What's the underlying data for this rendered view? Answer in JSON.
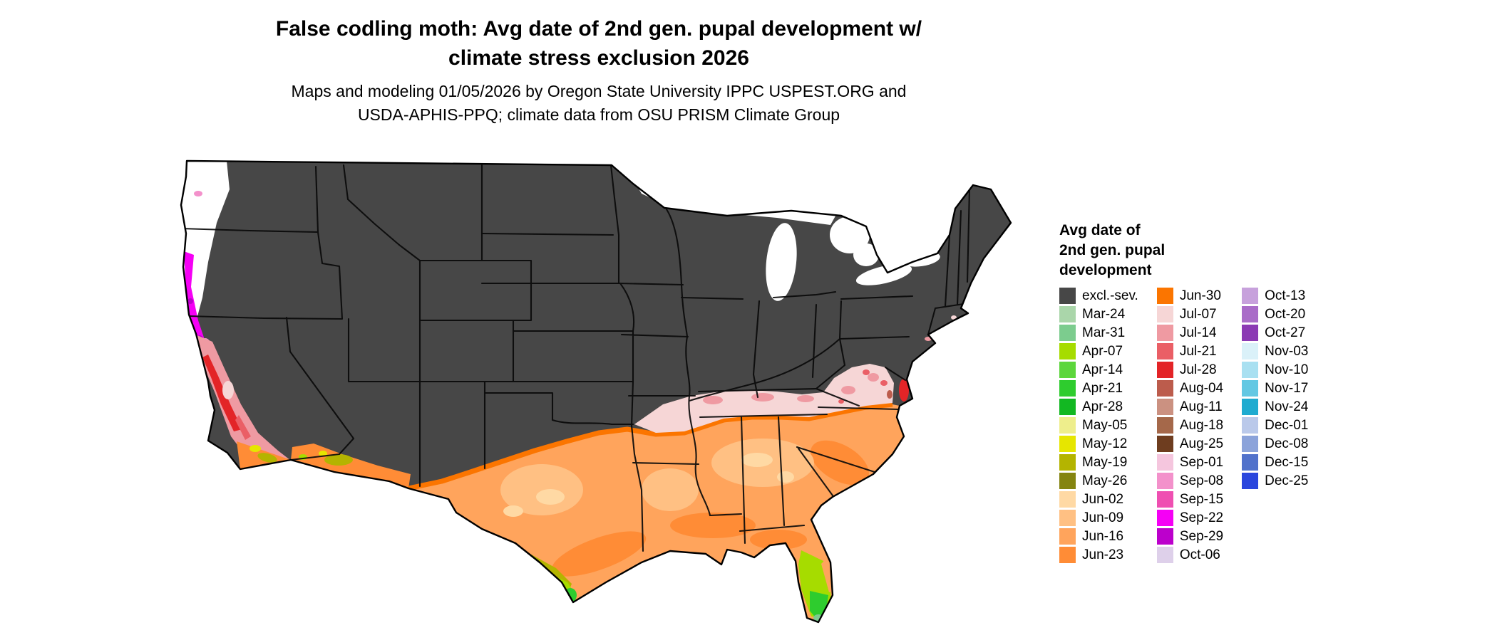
{
  "header": {
    "title_line1": "False codling moth: Avg date of 2nd gen. pupal development w/",
    "title_line2": "climate stress exclusion 2026",
    "subtitle_line1": "Maps and modeling 01/05/2026 by Oregon State University IPPC USPEST.ORG and",
    "subtitle_line2": "USDA-APHIS-PPQ; climate data from OSU PRISM Climate Group"
  },
  "legend": {
    "title_lines": [
      "Avg date of",
      "2nd gen. pupal",
      "development"
    ],
    "columns": [
      [
        "excl.-sev.",
        "Mar-24",
        "Mar-31",
        "Apr-07",
        "Apr-14",
        "Apr-21",
        "Apr-28",
        "May-05",
        "May-12",
        "May-19",
        "May-26",
        "Jun-02",
        "Jun-09",
        "Jun-16",
        "Jun-23"
      ],
      [
        "Jun-30",
        "Jul-07",
        "Jul-14",
        "Jul-21",
        "Jul-28",
        "Aug-04",
        "Aug-11",
        "Aug-18",
        "Aug-25",
        "Sep-01",
        "Sep-08",
        "Sep-15",
        "Sep-22",
        "Sep-29",
        "Oct-06"
      ],
      [
        "Oct-13",
        "Oct-20",
        "Oct-27",
        "Nov-03",
        "Nov-10",
        "Nov-17",
        "Nov-24",
        "Dec-01",
        "Dec-08",
        "Dec-15",
        "Dec-25"
      ]
    ]
  },
  "palette": {
    "excl.-sev.": "#474747",
    "Mar-24": "#aad6aa",
    "Mar-31": "#7ccc8e",
    "Apr-07": "#a6dc00",
    "Apr-14": "#5cd63c",
    "Apr-21": "#2ecc2e",
    "Apr-28": "#12b822",
    "May-05": "#eeee8c",
    "May-12": "#e6e600",
    "May-19": "#b4b400",
    "May-26": "#848410",
    "Jun-02": "#ffd9a4",
    "Jun-09": "#ffc083",
    "Jun-16": "#ffa45c",
    "Jun-23": "#ff8c36",
    "Jun-30": "#fb7500",
    "Jul-07": "#f6d6d6",
    "Jul-14": "#ef9aa2",
    "Jul-21": "#ea5f66",
    "Jul-28": "#e32427",
    "Aug-04": "#bc5c4c",
    "Aug-11": "#cb9181",
    "Aug-18": "#a5684a",
    "Aug-25": "#6e3d1f",
    "Sep-01": "#f5c6de",
    "Sep-08": "#f391cb",
    "Sep-15": "#ef4fb2",
    "Sep-22": "#f500f5",
    "Sep-29": "#bc00cc",
    "Oct-06": "#ded0ea",
    "Oct-13": "#c7a1dc",
    "Oct-20": "#a96cc8",
    "Oct-27": "#8b3ab4",
    "Nov-03": "#daf1f9",
    "Nov-10": "#a9e0f1",
    "Nov-17": "#63c8e3",
    "Nov-24": "#1fabd0",
    "Dec-01": "#bac9ea",
    "Dec-08": "#8ba3da",
    "Dec-15": "#5172cb",
    "Dec-25": "#2a46dd"
  },
  "map": {
    "type": "us-choropleth",
    "regions": [
      {
        "area": "Northern and central US, Rockies, Appalachians, Northeast",
        "value": "excl.-sev."
      },
      {
        "area": "Southern band: S Arizona, S New Mexico, most of Texas, Gulf states, Southeast, coastal Carolinas",
        "value": "Jun-02 to Jun-30"
      },
      {
        "area": "Mid-South band across Tennessee valley, N Alabama/Georgia, Virginia piedmont",
        "value": "Jul-07 to Jul-28"
      },
      {
        "area": "Delmarva / Chesapeake patches",
        "value": "Jul-28 to Aug-04"
      },
      {
        "area": "South Texas along Rio Grande",
        "value": "May-19 to May-26 grading to Apr-07 and Apr-21 at the tip"
      },
      {
        "area": "Central and south Florida",
        "value": "Apr-07 to Apr-28"
      },
      {
        "area": "California coast ranges and valley",
        "value": "Jul-14 to Jul-28 with Sep pinks near coast"
      },
      {
        "area": "S Oregon / N California coastline strip",
        "value": "Sep-22 to Sep-29"
      },
      {
        "area": "Western Washington and W Oregon lowlands",
        "value": "white (no value shown)"
      },
      {
        "area": "Phoenix / SoCal interior patches",
        "value": "May-12 to May-19"
      }
    ]
  }
}
